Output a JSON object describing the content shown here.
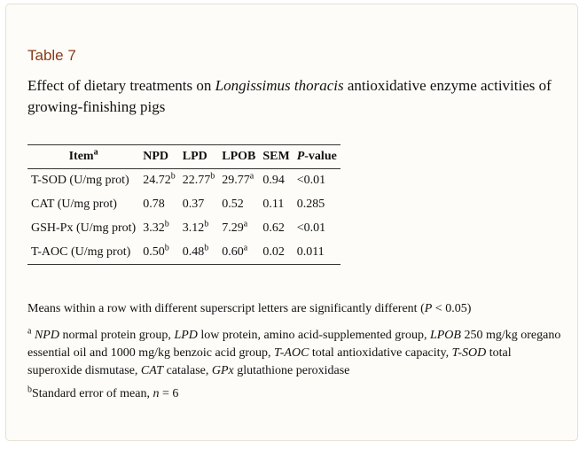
{
  "table": {
    "label": "Table 7",
    "caption_before": "Effect of dietary treatments on ",
    "caption_italic": "Longissimus thoracis",
    "caption_after": " antioxidative enzyme activities of growing-finishing pigs",
    "headers": {
      "item": "Item",
      "item_sup": "a",
      "npd": "NPD",
      "lpd": "LPD",
      "lpob": "LPOB",
      "sem": "SEM",
      "pvalue_italic": "P",
      "pvalue_rest": "-value"
    },
    "rows": [
      {
        "item": "T-SOD (U/mg prot)",
        "npd": "24.72",
        "npd_sup": "b",
        "lpd": "22.77",
        "lpd_sup": "b",
        "lpob": "29.77",
        "lpob_sup": "a",
        "sem": "0.94",
        "p": "<0.01"
      },
      {
        "item": "CAT (U/mg prot)",
        "npd": "0.78",
        "npd_sup": "",
        "lpd": "0.37",
        "lpd_sup": "",
        "lpob": "0.52",
        "lpob_sup": "",
        "sem": "0.11",
        "p": "0.285"
      },
      {
        "item": "GSH-Px (U/mg prot)",
        "npd": "3.32",
        "npd_sup": "b",
        "lpd": "3.12",
        "lpd_sup": "b",
        "lpob": "7.29",
        "lpob_sup": "a",
        "sem": "0.62",
        "p": "<0.01"
      },
      {
        "item": "T-AOC (U/mg prot)",
        "npd": "0.50",
        "npd_sup": "b",
        "lpd": "0.48",
        "lpd_sup": "b",
        "lpob": "0.60",
        "lpob_sup": "a",
        "sem": "0.02",
        "p": "0.011"
      }
    ]
  },
  "footnotes": {
    "means_before": "Means within a row with different superscript letters are significantly different (",
    "means_italic": "P",
    "means_after": " < 0.05)",
    "a_marker": "a",
    "a_parts": [
      {
        "italic": "NPD",
        "text": " normal protein group, "
      },
      {
        "italic": "LPD",
        "text": " low protein, amino acid-supplemented group, "
      },
      {
        "italic": "LPOB",
        "text": " 250 mg/kg oregano essential oil and 1000 mg/kg benzoic acid group, "
      },
      {
        "italic": "T-AOC",
        "text": " total antioxidative capacity, "
      },
      {
        "italic": "T-SOD",
        "text": " total superoxide dismutase, "
      },
      {
        "italic": "CAT",
        "text": " catalase, "
      },
      {
        "italic": "GPx",
        "text": " glutathione peroxidase"
      }
    ],
    "b_marker": "b",
    "b_before": "Standard error of mean, ",
    "b_italic": "n",
    "b_after": " = 6"
  }
}
